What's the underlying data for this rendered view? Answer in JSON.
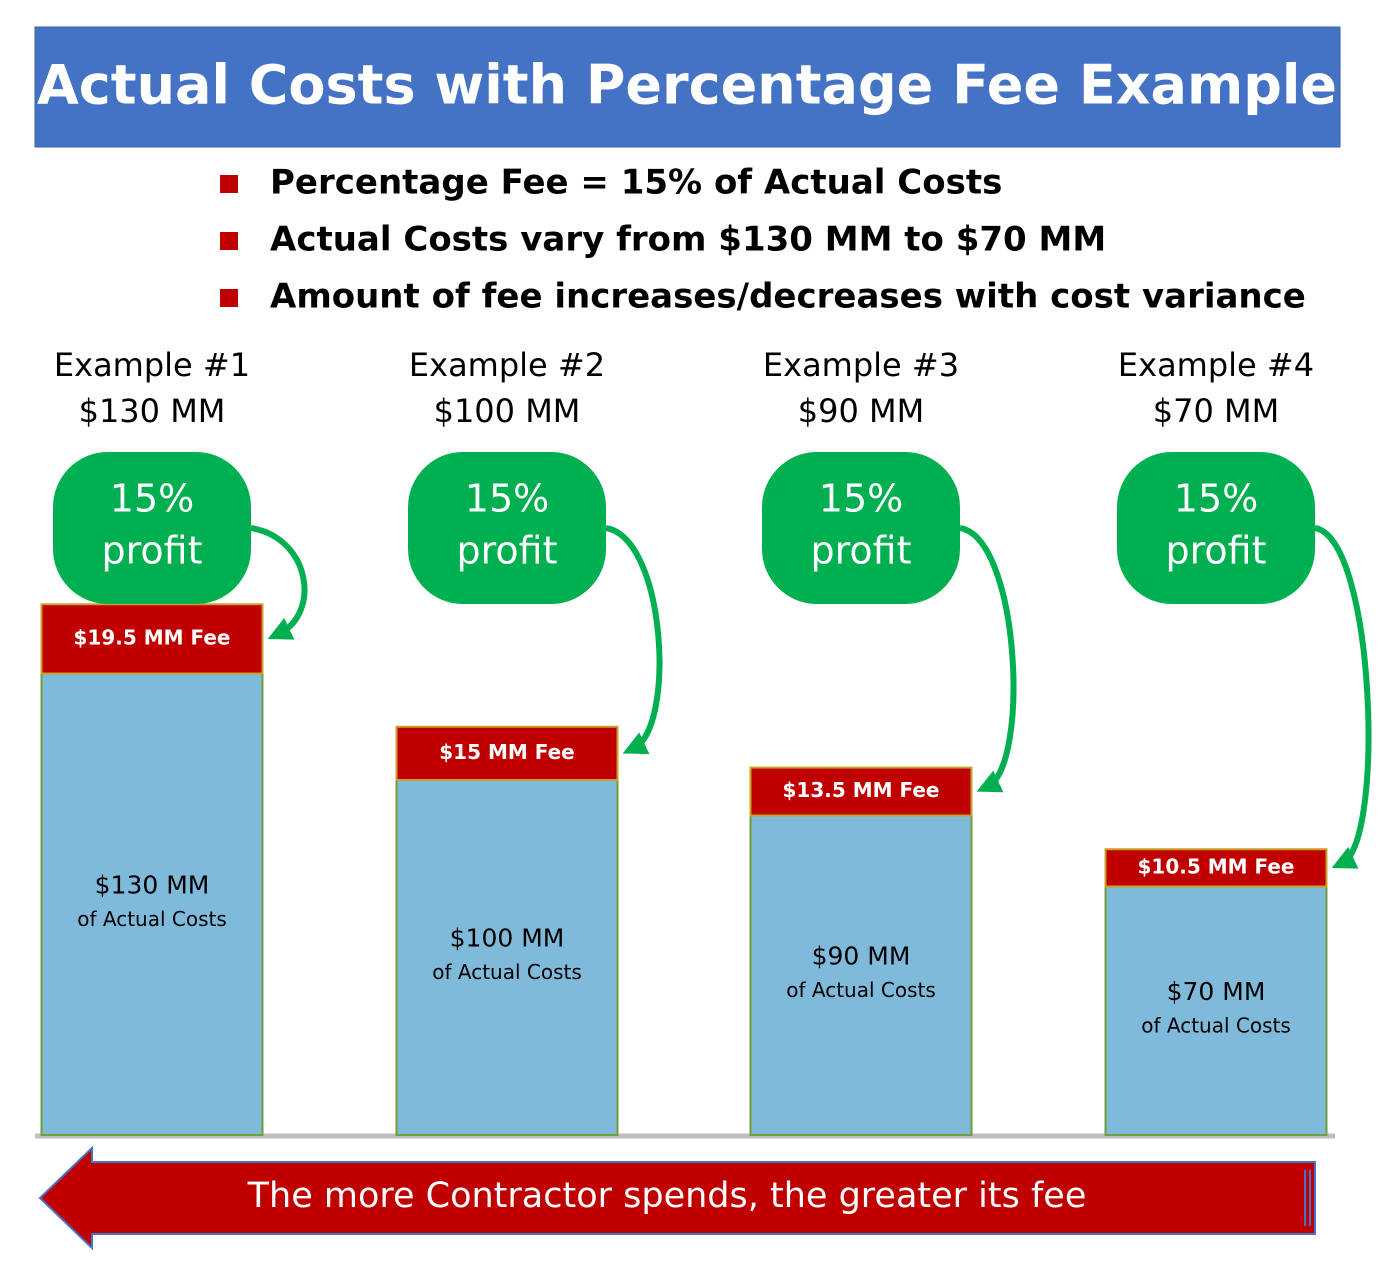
{
  "chart_data": {
    "type": "bar",
    "stacked": true,
    "title": "Actual Costs with Percentage Fee Example",
    "bullets": [
      "Percentage Fee = 15% of Actual Costs",
      "Actual Costs vary from $130 MM to $70 MM",
      "Amount of fee increases/decreases with cost variance"
    ],
    "categories": [
      "Example #1",
      "Example #2",
      "Example #3",
      "Example #4"
    ],
    "series": [
      {
        "color": "#7fbadb",
        "values": [
          130,
          100,
          90,
          70
        ],
        "value_labels": [
          "$130 MM",
          "$100 MM",
          "$90 MM",
          "$70 MM"
        ],
        "note": "of Actual Costs"
      },
      {
        "color": "#c00000",
        "values": [
          19.5,
          15,
          13.5,
          10.5
        ],
        "value_labels": [
          "$19.5 MM Fee",
          "$15 MM Fee",
          "$13.5 MM Fee",
          "$10.5 MM Fee"
        ]
      }
    ],
    "profit": {
      "color": "#00b050",
      "values": [
        15,
        15,
        15,
        15
      ],
      "value_labels": [
        "15%",
        "15%",
        "15%",
        "15%"
      ],
      "label": "profit"
    },
    "footer": "The more Contractor spends, the greater its fee"
  }
}
